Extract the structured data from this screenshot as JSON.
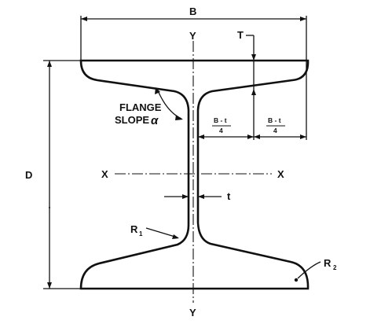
{
  "labels": {
    "B": "B",
    "T": "T",
    "D": "D",
    "Y_top": "Y",
    "Y_bottom": "Y",
    "X_left": "X",
    "X_right": "X",
    "t": "t",
    "flange_line1": "FLANGE",
    "flange_line2": "SLOPE",
    "alpha": "α",
    "frac1_num": "B - t",
    "frac1_den": "4",
    "frac2_num": "B - t",
    "frac2_den": "4",
    "R1": "R",
    "R1_sub": "1",
    "R2": "R",
    "R2_sub": "2"
  },
  "colors": {
    "ink": "#111111",
    "background": "#ffffff"
  }
}
